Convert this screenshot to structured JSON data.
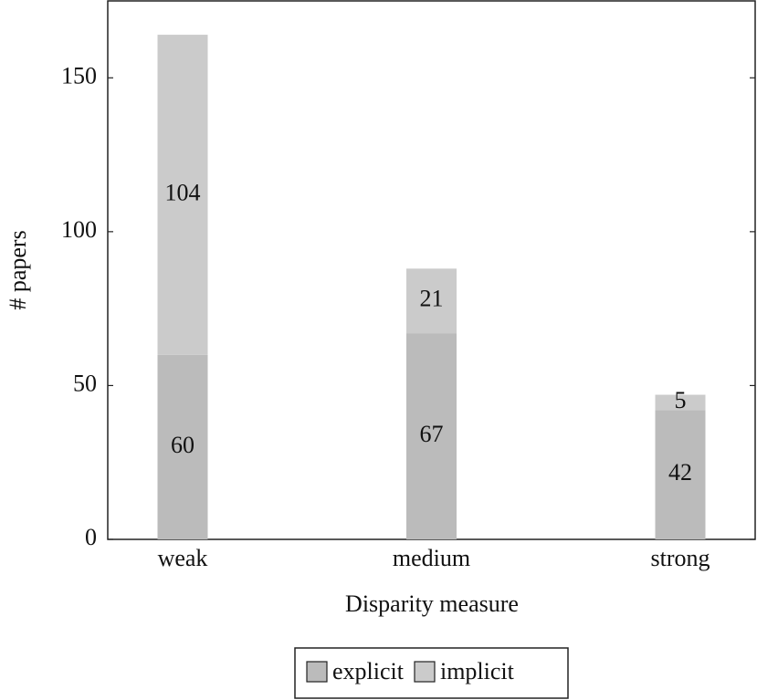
{
  "chart_data": {
    "type": "bar",
    "stacked": true,
    "x_label": "Disparity measure",
    "y_label": "# papers",
    "categories": [
      "weak",
      "medium",
      "strong"
    ],
    "series": [
      {
        "name": "explicit",
        "color": "#bbbbbb",
        "values": [
          60,
          67,
          42
        ]
      },
      {
        "name": "implicit",
        "color": "#cbcbcb",
        "values": [
          104,
          21,
          5
        ]
      }
    ],
    "ylim": [
      0,
      175
    ],
    "yticks": [
      0,
      50,
      100,
      150
    ],
    "grid": false,
    "legend": "bottom"
  }
}
